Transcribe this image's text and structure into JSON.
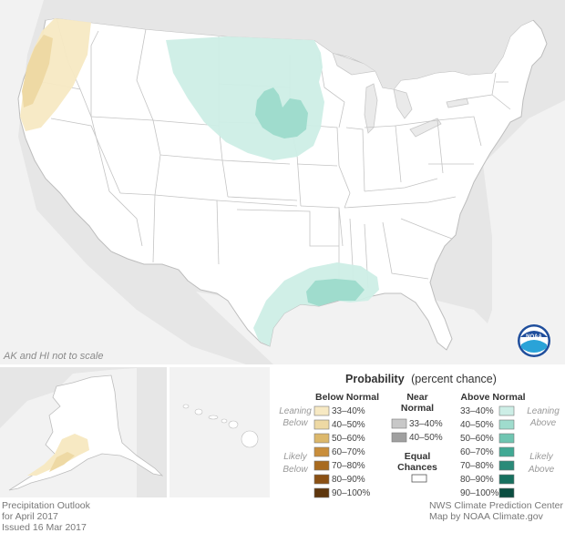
{
  "map": {
    "scale_note": "AK and HI not to scale"
  },
  "legend": {
    "title_bold": "Probability",
    "title_rest": "(percent chance)",
    "below": {
      "heading": "Below Normal",
      "leaning": [
        "Leaning",
        "Below"
      ],
      "likely": [
        "Likely",
        "Below"
      ],
      "ranges": [
        "33–40%",
        "40–50%",
        "50–60%",
        "60–70%",
        "70–80%",
        "80–90%",
        "90–100%"
      ],
      "colors": [
        "#f7e9c3",
        "#eed9a4",
        "#dcb86b",
        "#c98e3b",
        "#a86a1f",
        "#8a5014",
        "#5e360c"
      ]
    },
    "near": {
      "heading": [
        "Near",
        "Normal"
      ],
      "ranges": [
        "33–40%",
        "40–50%"
      ],
      "colors": [
        "#c8c8c8",
        "#a0a0a0"
      ]
    },
    "equal": {
      "label": [
        "Equal",
        "Chances"
      ]
    },
    "above": {
      "heading": "Above Normal",
      "leaning": [
        "Leaning",
        "Above"
      ],
      "likely": [
        "Likely",
        "Above"
      ],
      "ranges": [
        "33–40%",
        "40–50%",
        "50–60%",
        "60–70%",
        "70–80%",
        "80–90%",
        "90–100%"
      ],
      "colors": [
        "#cdeee6",
        "#9fdccd",
        "#6fc5b1",
        "#41a994",
        "#2a8a78",
        "#17705f",
        "#0b4d40"
      ]
    }
  },
  "credits": {
    "left": [
      "Precipitation Outlook",
      "for April 2017",
      "Issued 16 Mar 2017"
    ],
    "right": [
      "NWS Climate Prediction Center",
      "Map by NOAA Climate.gov"
    ]
  },
  "colors": {
    "land_other": "#e6e6e6",
    "ocean": "#f4f4f4",
    "us_land": "#ffffff",
    "border": "#bdbdbd"
  },
  "logo": {
    "text": "NOAA"
  }
}
